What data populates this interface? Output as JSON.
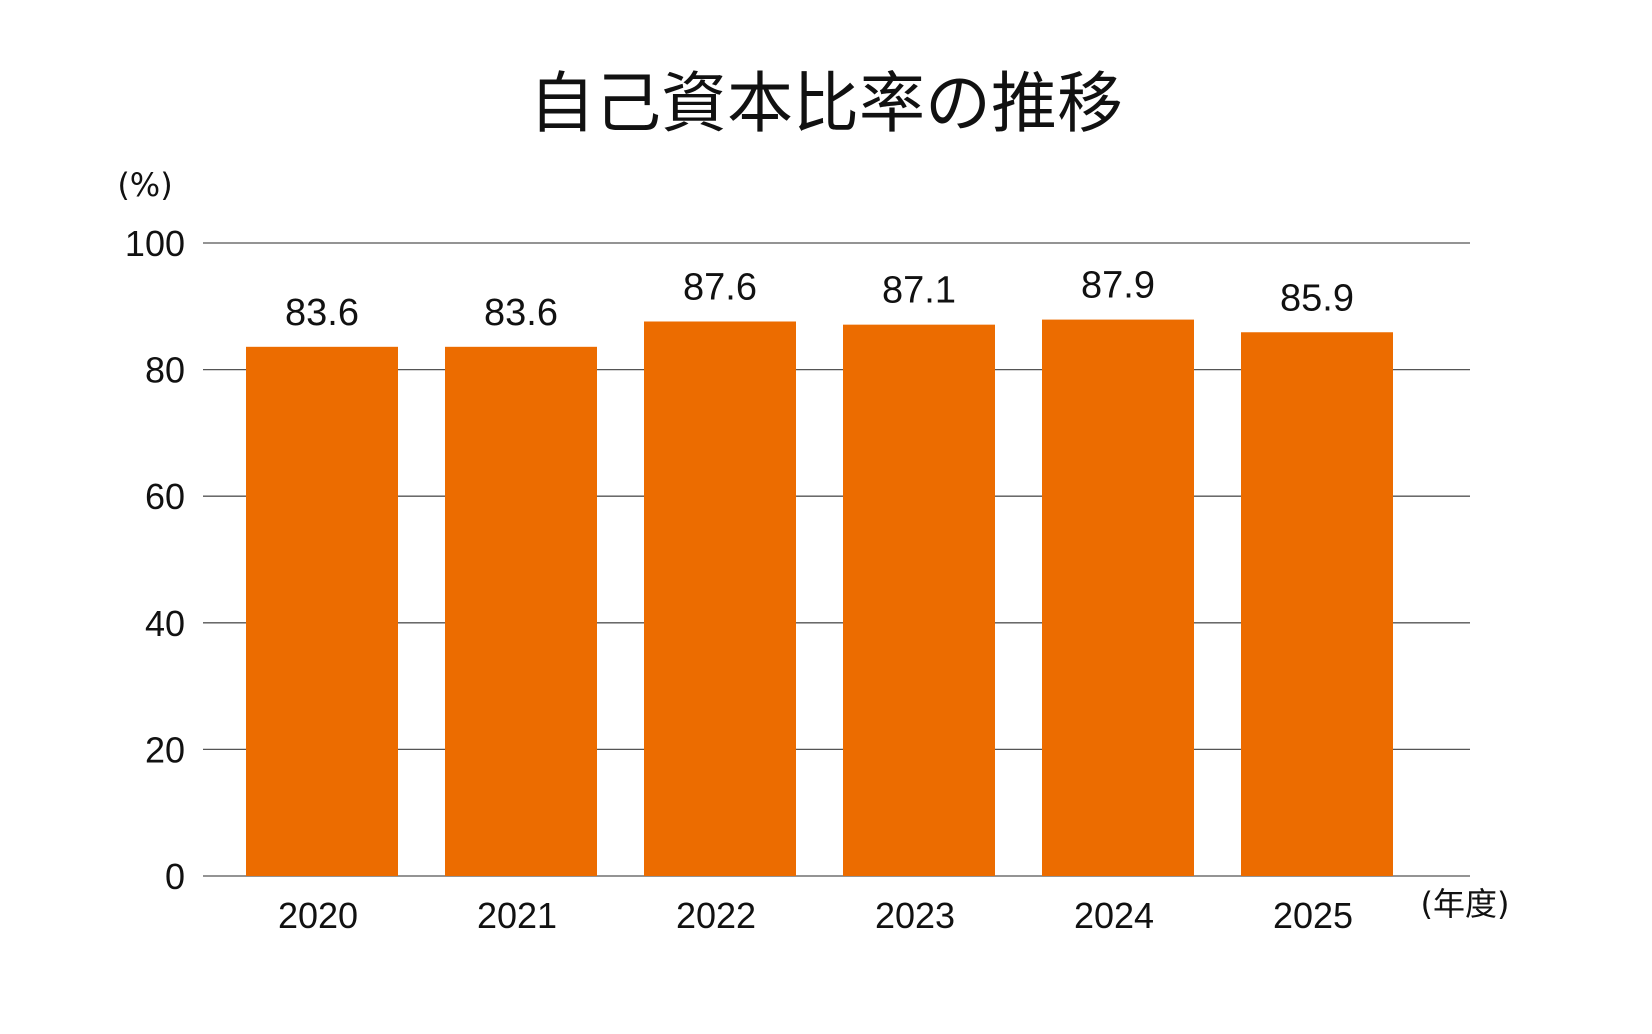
{
  "chart_data": {
    "type": "bar",
    "title": "自己資本比率の推移",
    "ylabel": "(%)",
    "xlabel": "(年度)",
    "categories": [
      "2020",
      "2021",
      "2022",
      "2023",
      "2024",
      "2025"
    ],
    "values": [
      83.6,
      83.6,
      87.6,
      87.1,
      87.9,
      85.9
    ],
    "value_labels": [
      "83.6",
      "83.6",
      "87.6",
      "87.1",
      "87.9",
      "85.9"
    ],
    "ylim": [
      0,
      100
    ],
    "yticks": [
      "0",
      "20",
      "40",
      "60",
      "80",
      "100"
    ],
    "grid": true,
    "bar_color": "#EC6C00"
  }
}
